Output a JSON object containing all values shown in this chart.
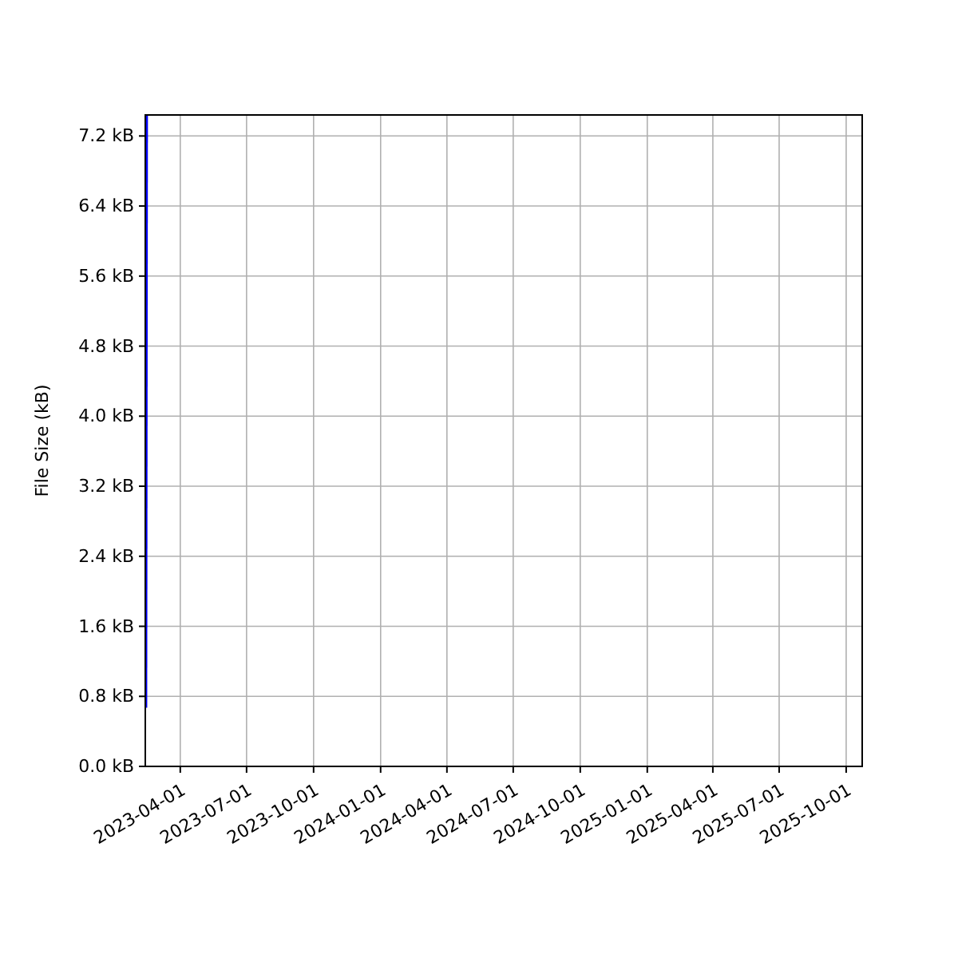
{
  "chart_data": {
    "type": "line",
    "ylabel": "File Size (kB)",
    "x": [
      "2023-02-13",
      "2023-02-14"
    ],
    "series": [
      {
        "color": "#0000ff",
        "values": [
          0.67,
          7.44
        ]
      }
    ],
    "xlim": [
      "2023-02-12",
      "2025-10-23"
    ],
    "xticks": [
      {
        "value": "2023-04-01",
        "label": "2023-04-01"
      },
      {
        "value": "2023-07-01",
        "label": "2023-07-01"
      },
      {
        "value": "2023-10-01",
        "label": "2023-10-01"
      },
      {
        "value": "2024-01-01",
        "label": "2024-01-01"
      },
      {
        "value": "2024-04-01",
        "label": "2024-04-01"
      },
      {
        "value": "2024-07-01",
        "label": "2024-07-01"
      },
      {
        "value": "2024-10-01",
        "label": "2024-10-01"
      },
      {
        "value": "2025-01-01",
        "label": "2025-01-01"
      },
      {
        "value": "2025-04-01",
        "label": "2025-04-01"
      },
      {
        "value": "2025-07-01",
        "label": "2025-07-01"
      },
      {
        "value": "2025-10-01",
        "label": "2025-10-01"
      }
    ],
    "ylim": [
      0,
      7.44
    ],
    "yticks": [
      {
        "value": 0,
        "label": "0.0 kB"
      },
      {
        "value": 0.8,
        "label": "0.8 kB"
      },
      {
        "value": 1.6,
        "label": "1.6 kB"
      },
      {
        "value": 2.4,
        "label": "2.4 kB"
      },
      {
        "value": 3.2,
        "label": "3.2 kB"
      },
      {
        "value": 4.0,
        "label": "4.0 kB"
      },
      {
        "value": 4.8,
        "label": "4.8 kB"
      },
      {
        "value": 5.6,
        "label": "5.6 kB"
      },
      {
        "value": 6.4,
        "label": "6.4 kB"
      },
      {
        "value": 7.2,
        "label": "7.2 kB"
      }
    ],
    "grid": true
  }
}
